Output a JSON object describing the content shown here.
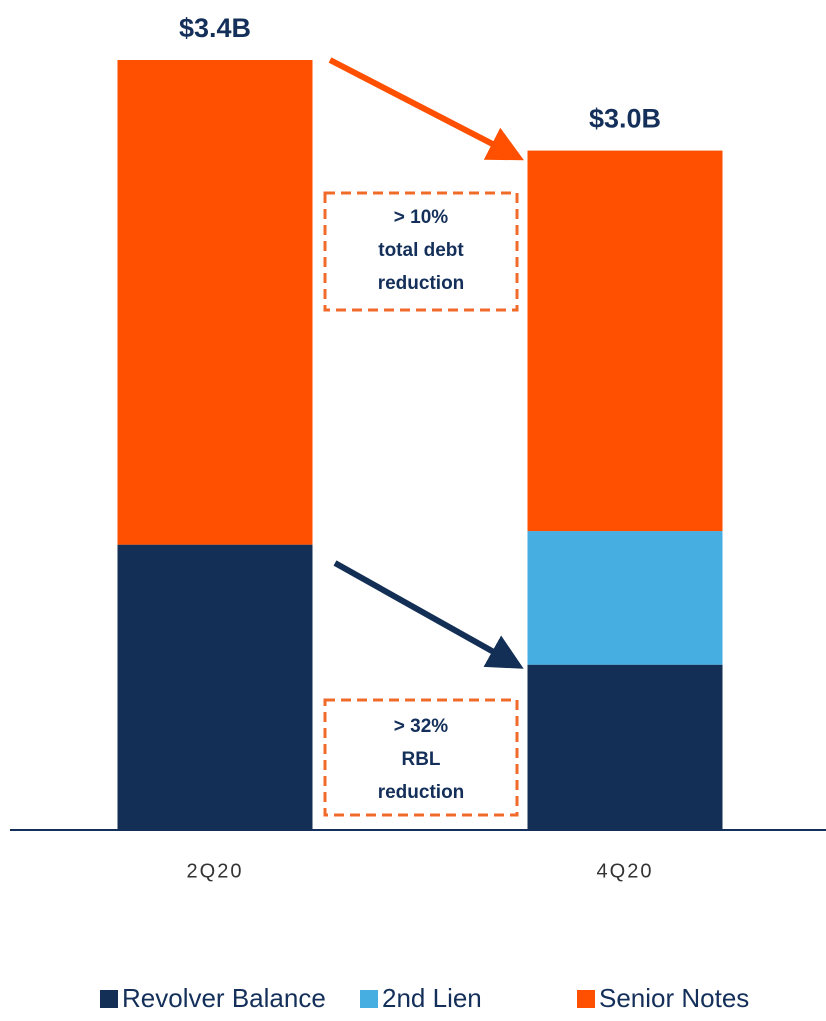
{
  "chart_data": {
    "type": "stacked_bar",
    "categories": [
      "2Q20",
      "4Q20"
    ],
    "series": [
      {
        "name": "Revolver Balance",
        "color": "#132f55",
        "values": [
          1.26,
          0.73
        ]
      },
      {
        "name": "2nd Lien",
        "color": "#46aee0",
        "values": [
          0,
          0.59
        ]
      },
      {
        "name": "Senior Notes",
        "color": "#ff4f00",
        "values": [
          2.14,
          1.68
        ]
      }
    ],
    "totals": {
      "values": [
        3.4,
        3.0
      ],
      "value_labels": [
        "$3.4B",
        "$3.0B"
      ]
    },
    "annotations": [
      {
        "lines": [
          "> 10%",
          "total debt",
          "reduction"
        ]
      },
      {
        "lines": [
          "> 32%",
          "RBL",
          "reduction"
        ]
      }
    ],
    "legend": "bottom"
  }
}
